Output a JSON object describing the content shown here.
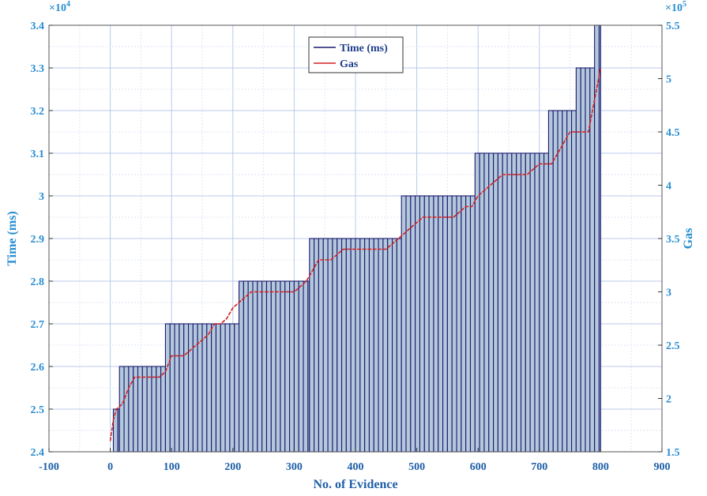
{
  "chart_data": {
    "type": "bar",
    "title": "",
    "xlabel": "No. of Evidence",
    "ylabel_left": "Time (ms)",
    "ylabel_right": "Gas",
    "left_multiplier": "×10",
    "left_multiplier_exp": "4",
    "right_multiplier": "×10",
    "right_multiplier_exp": "5",
    "xlim": [
      -100,
      900
    ],
    "ylim_left": [
      24000,
      34000
    ],
    "ylim_right": [
      150000,
      550000
    ],
    "grid": true,
    "legend_position": "top-center",
    "x_ticks": [
      -100,
      0,
      100,
      200,
      300,
      400,
      500,
      600,
      700,
      800,
      900
    ],
    "x_tick_labels": [
      "-100",
      "0",
      "100",
      "200",
      "300",
      "400",
      "500",
      "600",
      "700",
      "800",
      "900"
    ],
    "y_left_ticks": [
      24000,
      25000,
      26000,
      27000,
      28000,
      29000,
      30000,
      31000,
      32000,
      33000,
      34000
    ],
    "y_left_tick_labels": [
      "2.4",
      "2.5",
      "2.6",
      "2.7",
      "2.8",
      "2.9",
      "3",
      "3.1",
      "3.2",
      "3.3",
      "3.4"
    ],
    "y_right_ticks": [
      150000,
      200000,
      250000,
      300000,
      350000,
      400000,
      450000,
      500000,
      550000
    ],
    "y_right_tick_labels": [
      "1.5",
      "2",
      "2.5",
      "3",
      "3.5",
      "4",
      "4.5",
      "5",
      "5.5"
    ],
    "series": [
      {
        "name": "Time (ms)",
        "kind": "bar",
        "axis": "left",
        "color": "#1a1a6e",
        "fill": "#b4c8dc",
        "bar_width": 7.5,
        "segments": [
          {
            "x_start": 5,
            "x_end": 15,
            "value": 25000
          },
          {
            "x_start": 15,
            "x_end": 90,
            "value": 26000
          },
          {
            "x_start": 90,
            "x_end": 210,
            "value": 27000
          },
          {
            "x_start": 210,
            "x_end": 325,
            "value": 28000
          },
          {
            "x_start": 325,
            "x_end": 475,
            "value": 29000
          },
          {
            "x_start": 475,
            "x_end": 595,
            "value": 30000
          },
          {
            "x_start": 595,
            "x_end": 715,
            "value": 31000
          },
          {
            "x_start": 715,
            "x_end": 760,
            "value": 32000
          },
          {
            "x_start": 760,
            "x_end": 790,
            "value": 33000
          },
          {
            "x_start": 790,
            "x_end": 800,
            "value": 34000
          }
        ]
      },
      {
        "name": "Gas",
        "kind": "line",
        "axis": "right",
        "color": "#d42020",
        "x": [
          0,
          5,
          10,
          20,
          30,
          40,
          50,
          60,
          70,
          80,
          90,
          100,
          110,
          120,
          130,
          140,
          150,
          160,
          170,
          180,
          190,
          200,
          210,
          220,
          230,
          240,
          250,
          260,
          270,
          280,
          290,
          300,
          310,
          320,
          330,
          340,
          350,
          360,
          370,
          380,
          390,
          400,
          410,
          420,
          430,
          440,
          450,
          460,
          470,
          480,
          490,
          500,
          510,
          520,
          530,
          540,
          550,
          560,
          570,
          580,
          590,
          600,
          610,
          620,
          630,
          640,
          650,
          660,
          670,
          680,
          690,
          700,
          710,
          720,
          730,
          740,
          750,
          760,
          770,
          780,
          790,
          800
        ],
        "y": [
          160000,
          180000,
          190000,
          195000,
          210000,
          220000,
          220000,
          220000,
          220000,
          220000,
          225000,
          240000,
          240000,
          240000,
          245000,
          250000,
          255000,
          260000,
          270000,
          270000,
          275000,
          285000,
          290000,
          295000,
          300000,
          300000,
          300000,
          300000,
          300000,
          300000,
          300000,
          300000,
          305000,
          310000,
          320000,
          330000,
          330000,
          330000,
          335000,
          340000,
          340000,
          340000,
          340000,
          340000,
          340000,
          340000,
          340000,
          345000,
          350000,
          355000,
          360000,
          365000,
          370000,
          370000,
          370000,
          370000,
          370000,
          370000,
          375000,
          380000,
          380000,
          390000,
          395000,
          400000,
          405000,
          410000,
          410000,
          410000,
          410000,
          410000,
          415000,
          420000,
          420000,
          420000,
          430000,
          440000,
          450000,
          450000,
          450000,
          450000,
          480000,
          510000
        ]
      }
    ]
  }
}
